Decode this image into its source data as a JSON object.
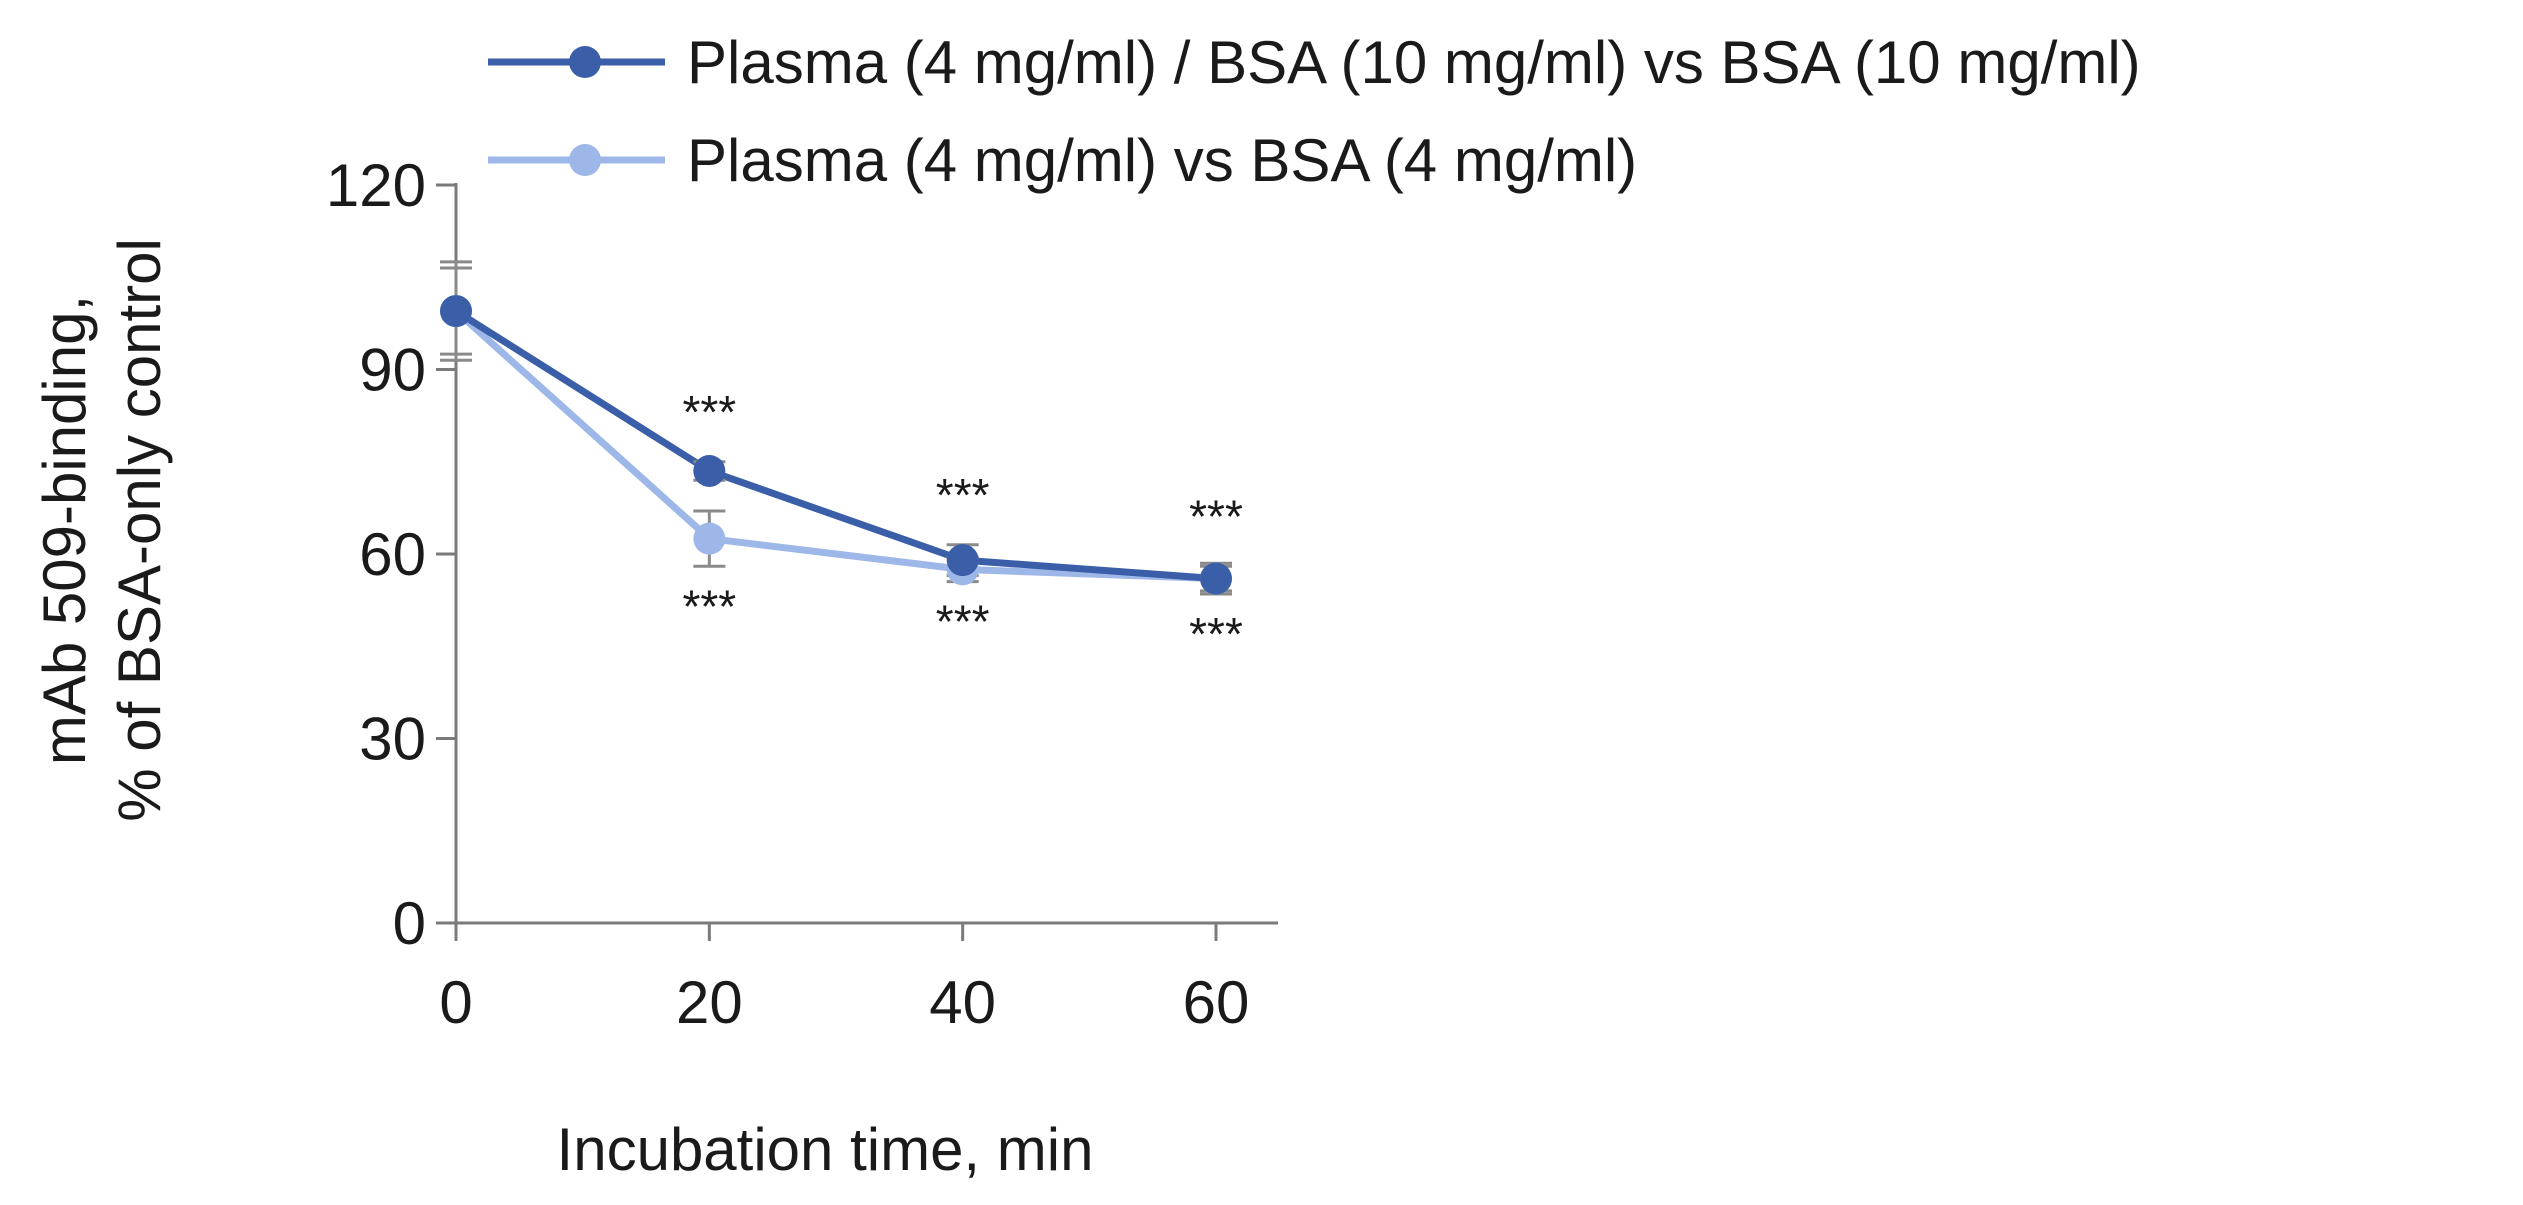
{
  "chart_data": {
    "type": "line",
    "title": "",
    "xlabel": "Incubation time, min",
    "ylabel_lines": [
      "mAb 509-binding,",
      "% of BSA-only control"
    ],
    "x": [
      0,
      20,
      40,
      60
    ],
    "x_ticks": [
      "0",
      "20",
      "40",
      "60"
    ],
    "xlim": [
      0,
      65
    ],
    "y_ticks": [
      "0",
      "30",
      "60",
      "90",
      "120"
    ],
    "ylim": [
      0,
      120
    ],
    "grid": false,
    "legend_position": "top",
    "series": [
      {
        "name": "Plasma (4 mg/ml) / BSA (10 mg/ml) vs BSA (10 mg/ml)",
        "color": "#3a5ea8",
        "values": [
          99.5,
          73.5,
          59,
          56
        ],
        "error": [
          8,
          1.5,
          2.5,
          2
        ],
        "significance": [
          "",
          "***",
          "***",
          "***"
        ],
        "significance_placement": "above"
      },
      {
        "name": "Plasma (4 mg/ml) vs BSA (4 mg/ml)",
        "color": "#9db8e8",
        "values": [
          99.5,
          62.5,
          57.5,
          56
        ],
        "error": [
          7,
          4.5,
          2,
          2.5
        ],
        "significance": [
          "",
          "***",
          "***",
          "***"
        ],
        "significance_placement": "below"
      }
    ]
  }
}
